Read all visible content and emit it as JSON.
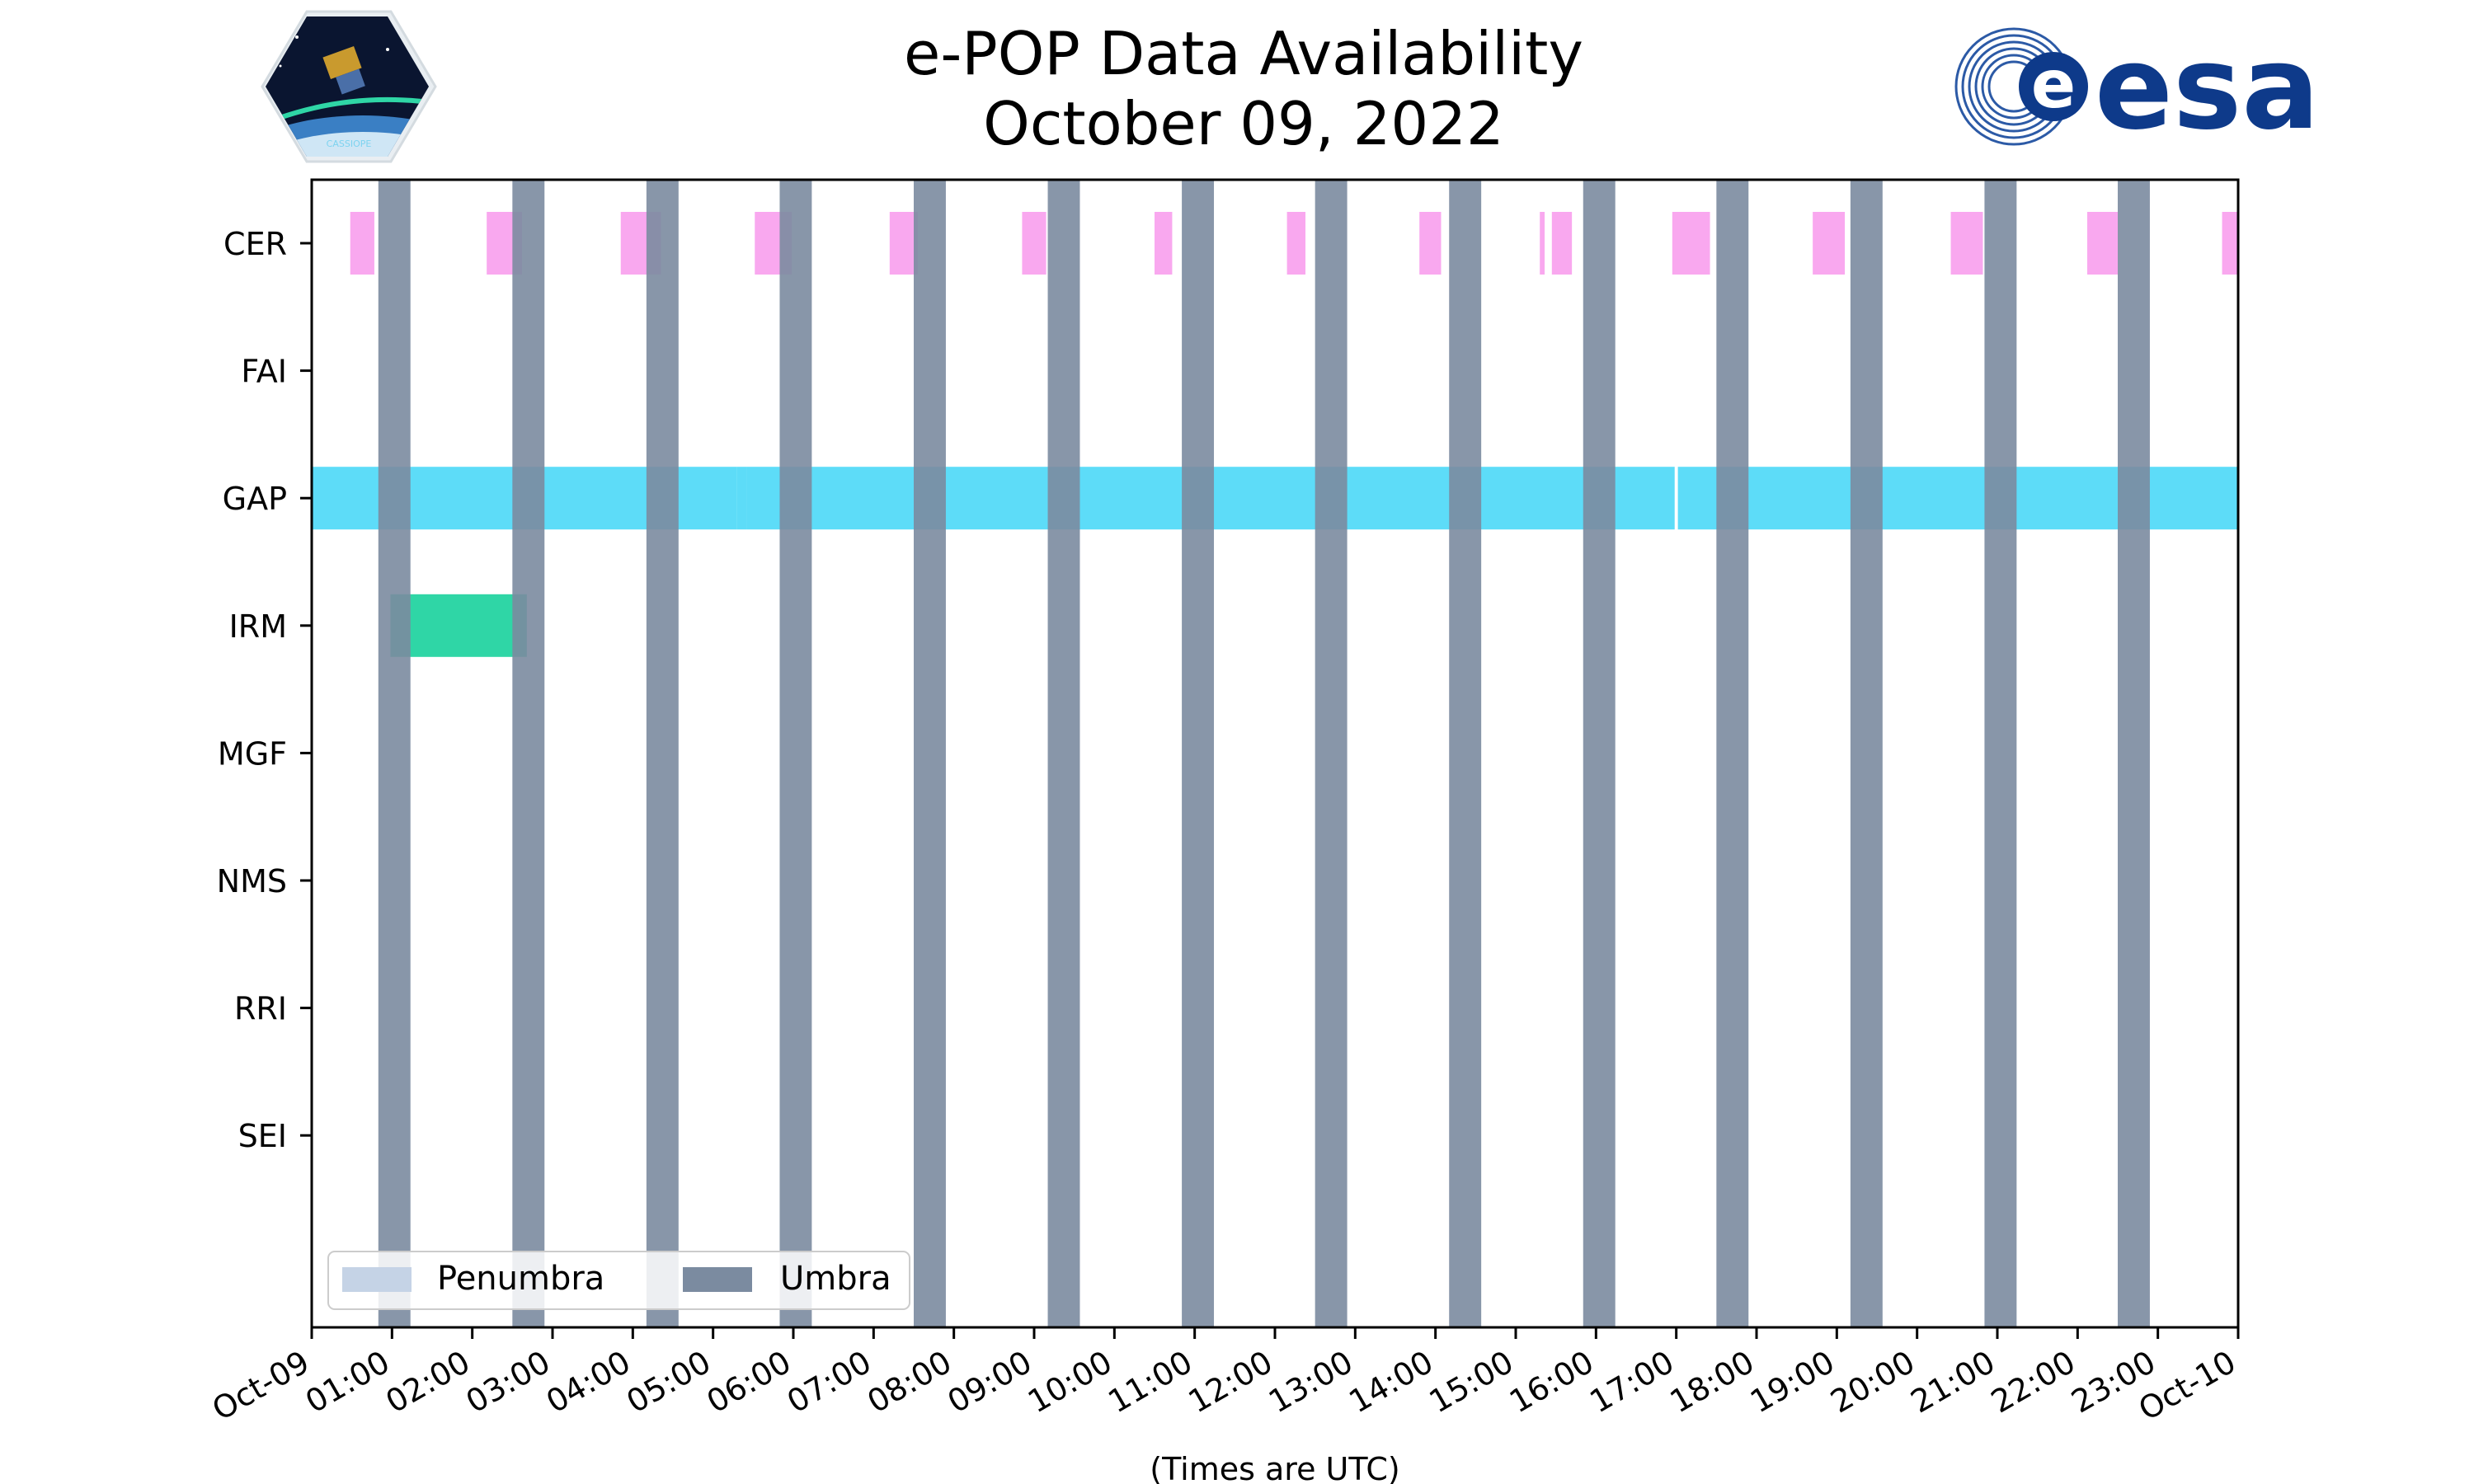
{
  "chart_data": {
    "type": "timeline",
    "title": "e-POP Data Availability",
    "subtitle": "October 09, 2022",
    "xlabel": "(Times are UTC)",
    "ylabel": "",
    "x_range_hours": [
      0,
      24
    ],
    "x_tick_labels": [
      "Oct-09",
      "01:00",
      "02:00",
      "03:00",
      "04:00",
      "05:00",
      "06:00",
      "07:00",
      "08:00",
      "09:00",
      "10:00",
      "11:00",
      "12:00",
      "13:00",
      "14:00",
      "15:00",
      "16:00",
      "17:00",
      "18:00",
      "19:00",
      "20:00",
      "21:00",
      "22:00",
      "23:00",
      "Oct-10"
    ],
    "instruments": [
      "CER",
      "FAI",
      "GAP",
      "IRM",
      "MGF",
      "NMS",
      "RRI",
      "SEI"
    ],
    "colors": {
      "CER": "#f9a8ef",
      "GAP": "#5ddcf8",
      "IRM": "#2fd6a6",
      "umbra": "#7b8ba0",
      "penumbra": "#c5d3e6"
    },
    "availability": {
      "CER": [
        [
          0.48,
          0.78
        ],
        [
          2.18,
          2.62
        ],
        [
          3.85,
          4.35
        ],
        [
          5.52,
          5.98
        ],
        [
          7.2,
          7.55
        ],
        [
          8.85,
          9.15
        ],
        [
          10.5,
          10.72
        ],
        [
          12.15,
          12.38
        ],
        [
          13.8,
          14.07
        ],
        [
          15.3,
          15.36
        ],
        [
          15.45,
          15.7
        ],
        [
          16.95,
          17.42
        ],
        [
          18.7,
          19.1
        ],
        [
          20.42,
          20.82
        ],
        [
          22.12,
          22.5
        ],
        [
          23.8,
          24.0
        ]
      ],
      "FAI": [],
      "GAP": [
        [
          0.0,
          5.3
        ],
        [
          5.3,
          5.42
        ],
        [
          5.42,
          16.98
        ],
        [
          17.02,
          24.0
        ]
      ],
      "IRM": [
        [
          0.98,
          2.68
        ]
      ],
      "MGF": [],
      "NMS": [],
      "RRI": [],
      "SEI": []
    },
    "umbra": [
      [
        0.83,
        1.23
      ],
      [
        2.5,
        2.9
      ],
      [
        4.17,
        4.57
      ],
      [
        5.83,
        6.23
      ],
      [
        7.5,
        7.9
      ],
      [
        9.17,
        9.57
      ],
      [
        10.84,
        11.24
      ],
      [
        12.5,
        12.9
      ],
      [
        14.17,
        14.57
      ],
      [
        15.84,
        16.24
      ],
      [
        17.5,
        17.9
      ],
      [
        19.17,
        19.57
      ],
      [
        20.84,
        21.24
      ],
      [
        22.5,
        22.9
      ]
    ],
    "penumbra": [],
    "legend": {
      "position": "lower-left",
      "entries": [
        "Penumbra",
        "Umbra"
      ]
    },
    "grid": false
  },
  "logos": {
    "left": "cassiope-mission-logo",
    "right_text": "esa"
  }
}
